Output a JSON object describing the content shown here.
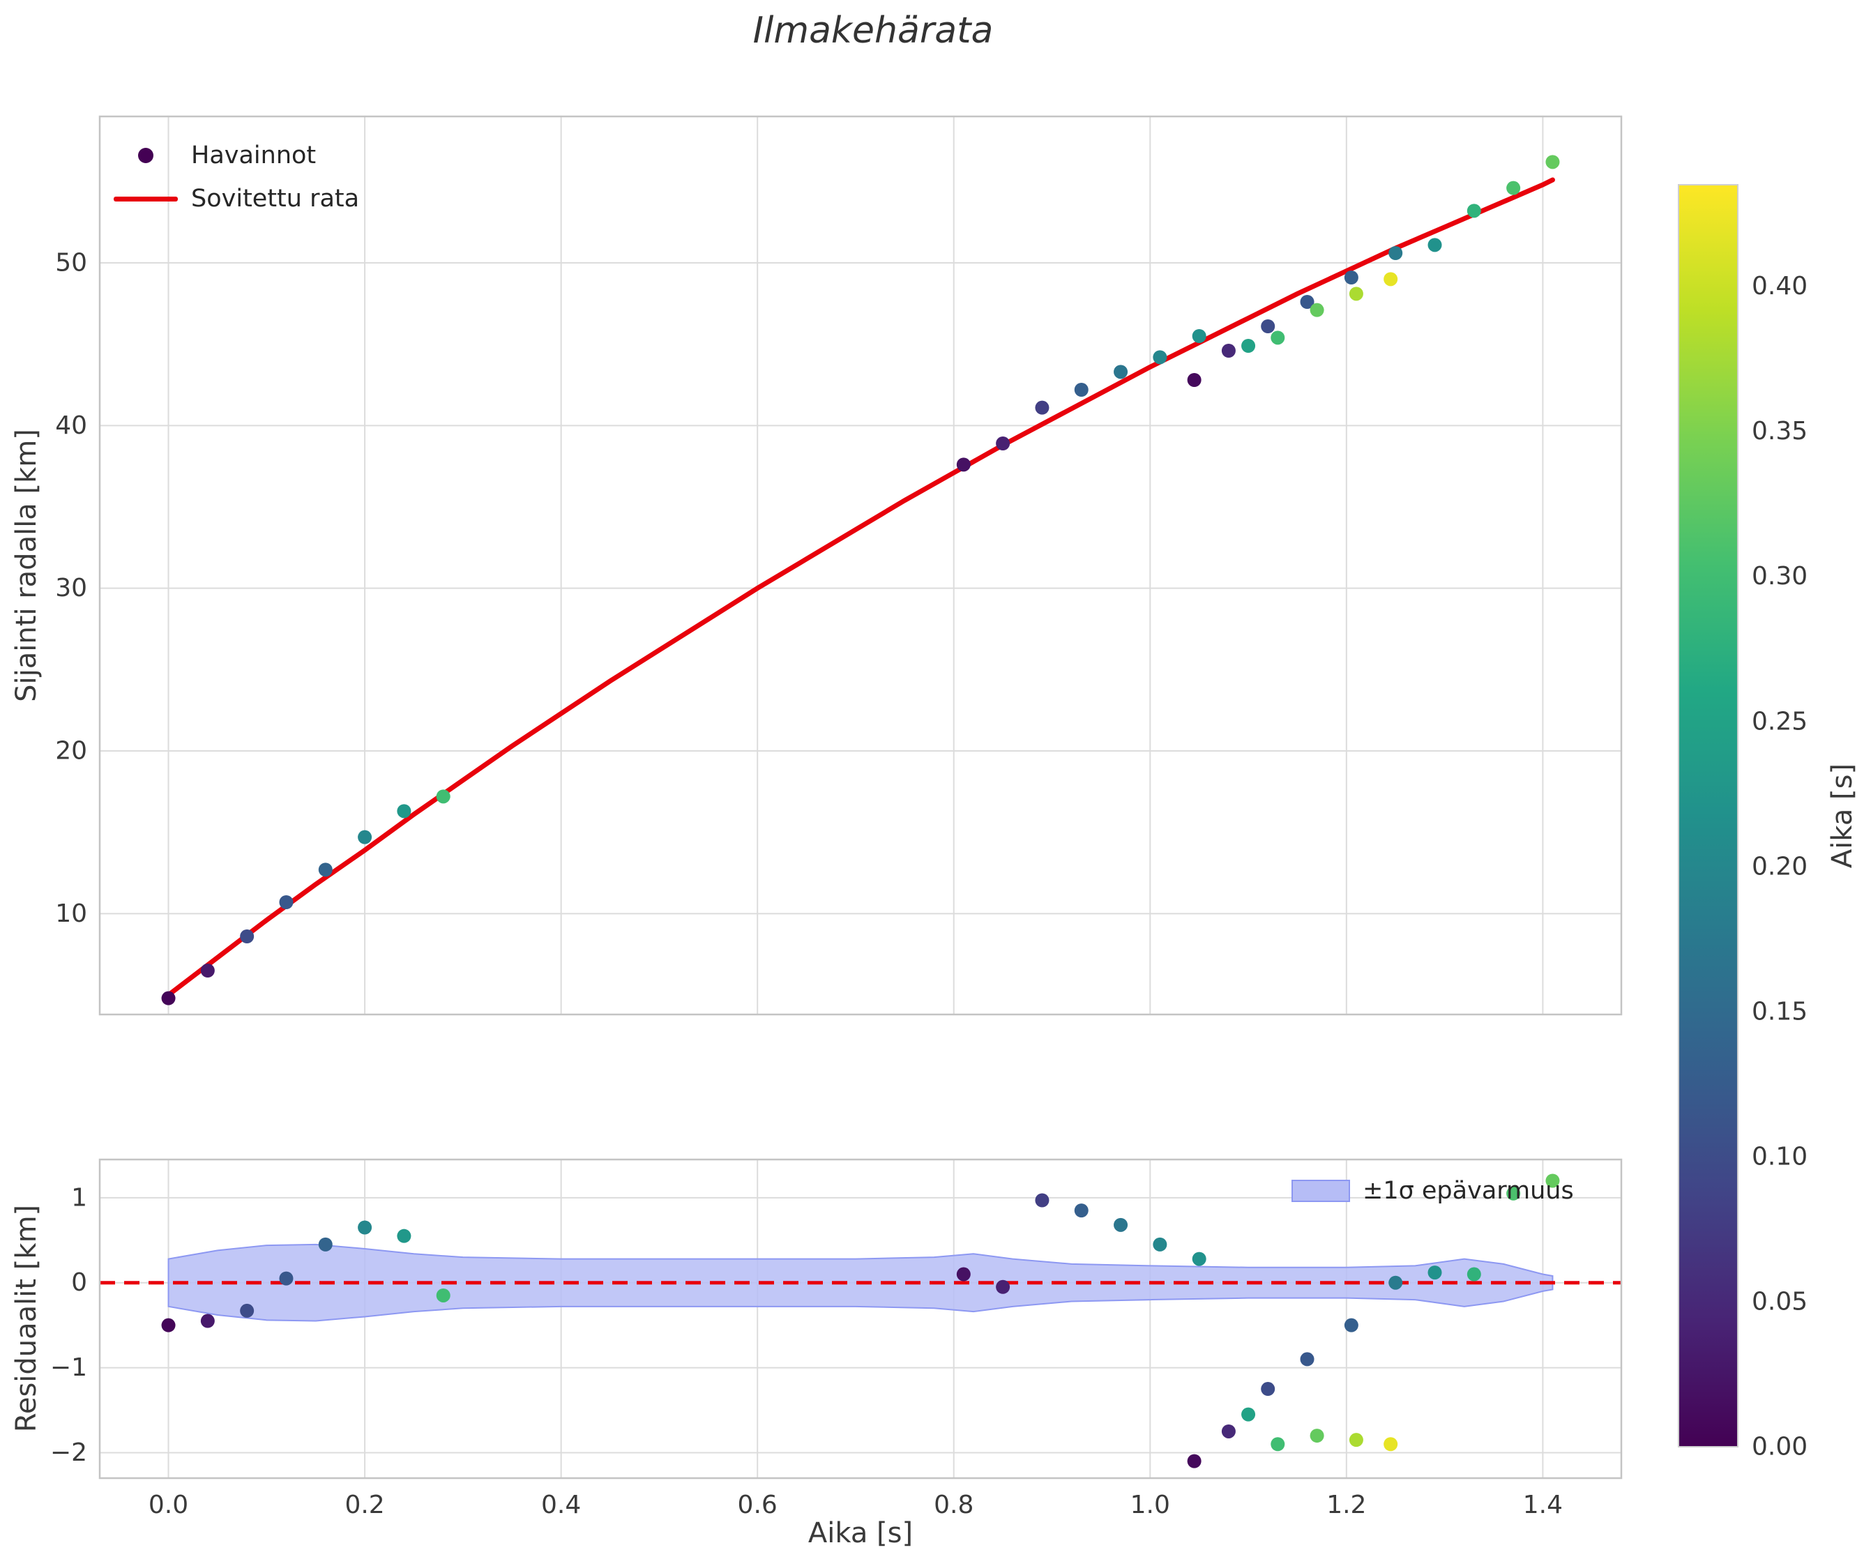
{
  "chart_data": [
    {
      "type": "scatter",
      "id": "trajectory",
      "title": "Ilmakehärata",
      "ylabel": "Sijainti radalla [km]",
      "xlim": [
        -0.07,
        1.48
      ],
      "ylim": [
        3.8,
        59.0
      ],
      "xticks": [
        0.0,
        0.2,
        0.4,
        0.6,
        0.8,
        1.0,
        1.2,
        1.4
      ],
      "show_x_ticklabels": false,
      "yticks": [
        10,
        20,
        30,
        40,
        50
      ],
      "yticklabels": [
        "10",
        "20",
        "30",
        "40",
        "50"
      ],
      "grid": true,
      "legend": {
        "position": "upper-left",
        "items": [
          {
            "label": "Havainnot",
            "type": "marker",
            "color": "#440154"
          },
          {
            "label": "Sovitettu rata",
            "type": "line",
            "color": "#e8000b"
          }
        ]
      },
      "scatter": {
        "x": [
          0.0,
          0.04,
          0.08,
          0.12,
          0.16,
          0.2,
          0.24,
          0.28,
          0.81,
          0.85,
          0.89,
          0.93,
          0.97,
          1.01,
          1.045,
          1.05,
          1.08,
          1.1,
          1.12,
          1.13,
          1.16,
          1.17,
          1.205,
          1.21,
          1.245,
          1.25,
          1.29,
          1.33,
          1.37,
          1.41
        ],
        "y": [
          4.8,
          6.5,
          8.6,
          10.7,
          12.7,
          14.7,
          16.3,
          17.2,
          37.6,
          38.9,
          41.1,
          42.2,
          43.3,
          44.2,
          42.8,
          45.5,
          44.6,
          44.9,
          46.1,
          45.4,
          47.6,
          47.1,
          49.1,
          48.1,
          49.0,
          50.6,
          51.1,
          53.2,
          54.6,
          56.2
        ],
        "color_values": [
          0.005,
          0.03,
          0.1,
          0.12,
          0.14,
          0.2,
          0.23,
          0.3,
          0.02,
          0.04,
          0.08,
          0.13,
          0.17,
          0.2,
          0.01,
          0.22,
          0.05,
          0.25,
          0.1,
          0.3,
          0.12,
          0.33,
          0.13,
          0.38,
          0.42,
          0.18,
          0.22,
          0.28,
          0.31,
          0.33
        ]
      },
      "fit_line": {
        "color": "#e8000b",
        "x": [
          0.0,
          0.05,
          0.1,
          0.15,
          0.2,
          0.25,
          0.3,
          0.35,
          0.4,
          0.45,
          0.5,
          0.55,
          0.6,
          0.65,
          0.7,
          0.75,
          0.8,
          0.85,
          0.9,
          0.95,
          1.0,
          1.05,
          1.1,
          1.15,
          1.2,
          1.25,
          1.3,
          1.35,
          1.4,
          1.41
        ],
        "y": [
          5.0,
          7.3,
          9.6,
          11.8,
          13.9,
          16.1,
          18.2,
          20.3,
          22.3,
          24.3,
          26.2,
          28.1,
          30.0,
          31.8,
          33.6,
          35.4,
          37.1,
          38.8,
          40.4,
          42.0,
          43.6,
          45.1,
          46.6,
          48.1,
          49.5,
          50.9,
          52.2,
          53.5,
          54.8,
          55.1
        ]
      }
    },
    {
      "type": "scatter",
      "id": "residuals",
      "ylabel": "Residuaalit [km]",
      "xlabel": "Aika [s]",
      "xlim": [
        -0.07,
        1.48
      ],
      "ylim": [
        -2.3,
        1.45
      ],
      "xticks": [
        0.0,
        0.2,
        0.4,
        0.6,
        0.8,
        1.0,
        1.2,
        1.4
      ],
      "xticklabels": [
        "0.0",
        "0.2",
        "0.4",
        "0.6",
        "0.8",
        "1.0",
        "1.2",
        "1.4"
      ],
      "yticks": [
        -2,
        -1,
        0,
        1
      ],
      "yticklabels": [
        "−2",
        "−1",
        "0",
        "1"
      ],
      "grid": true,
      "zero_line": {
        "y": 0,
        "color": "#e8000b",
        "dashed": true
      },
      "band": {
        "label": "±1σ epävarmuus",
        "fill": "#b6bdf6",
        "edge": "#8d98f2",
        "x": [
          0.0,
          0.05,
          0.1,
          0.15,
          0.2,
          0.25,
          0.3,
          0.4,
          0.5,
          0.6,
          0.7,
          0.78,
          0.82,
          0.86,
          0.92,
          1.0,
          1.1,
          1.2,
          1.27,
          1.32,
          1.36,
          1.4,
          1.41
        ],
        "sigma": [
          0.28,
          0.38,
          0.44,
          0.45,
          0.4,
          0.34,
          0.3,
          0.28,
          0.28,
          0.28,
          0.28,
          0.3,
          0.34,
          0.28,
          0.22,
          0.2,
          0.18,
          0.18,
          0.2,
          0.28,
          0.22,
          0.1,
          0.08
        ]
      },
      "scatter": {
        "x": [
          0.0,
          0.04,
          0.08,
          0.12,
          0.16,
          0.2,
          0.24,
          0.28,
          0.81,
          0.85,
          0.89,
          0.93,
          0.97,
          1.01,
          1.045,
          1.05,
          1.08,
          1.1,
          1.12,
          1.13,
          1.16,
          1.17,
          1.205,
          1.21,
          1.245,
          1.25,
          1.29,
          1.33,
          1.37,
          1.41
        ],
        "y": [
          -0.5,
          -0.45,
          -0.33,
          0.05,
          0.45,
          0.65,
          0.55,
          -0.15,
          0.1,
          -0.05,
          0.97,
          0.85,
          0.68,
          0.45,
          -2.1,
          0.28,
          -1.75,
          -1.55,
          -1.25,
          -1.9,
          -0.9,
          -1.8,
          -0.5,
          -1.85,
          -1.9,
          0.0,
          0.12,
          0.1,
          1.05,
          1.2
        ],
        "color_values": [
          0.005,
          0.03,
          0.1,
          0.12,
          0.14,
          0.2,
          0.23,
          0.3,
          0.02,
          0.04,
          0.08,
          0.13,
          0.17,
          0.2,
          0.01,
          0.22,
          0.05,
          0.25,
          0.1,
          0.3,
          0.12,
          0.33,
          0.13,
          0.38,
          0.42,
          0.18,
          0.22,
          0.28,
          0.31,
          0.33
        ]
      }
    }
  ],
  "colorbar": {
    "label": "Aika [s]",
    "colormap": "viridis",
    "vmin": 0.0,
    "vmax": 0.435,
    "ticks": [
      0.0,
      0.05,
      0.1,
      0.15,
      0.2,
      0.25,
      0.3,
      0.35,
      0.4
    ],
    "ticklabels": [
      "0.00",
      "0.05",
      "0.10",
      "0.15",
      "0.20",
      "0.25",
      "0.30",
      "0.35",
      "0.40"
    ]
  }
}
